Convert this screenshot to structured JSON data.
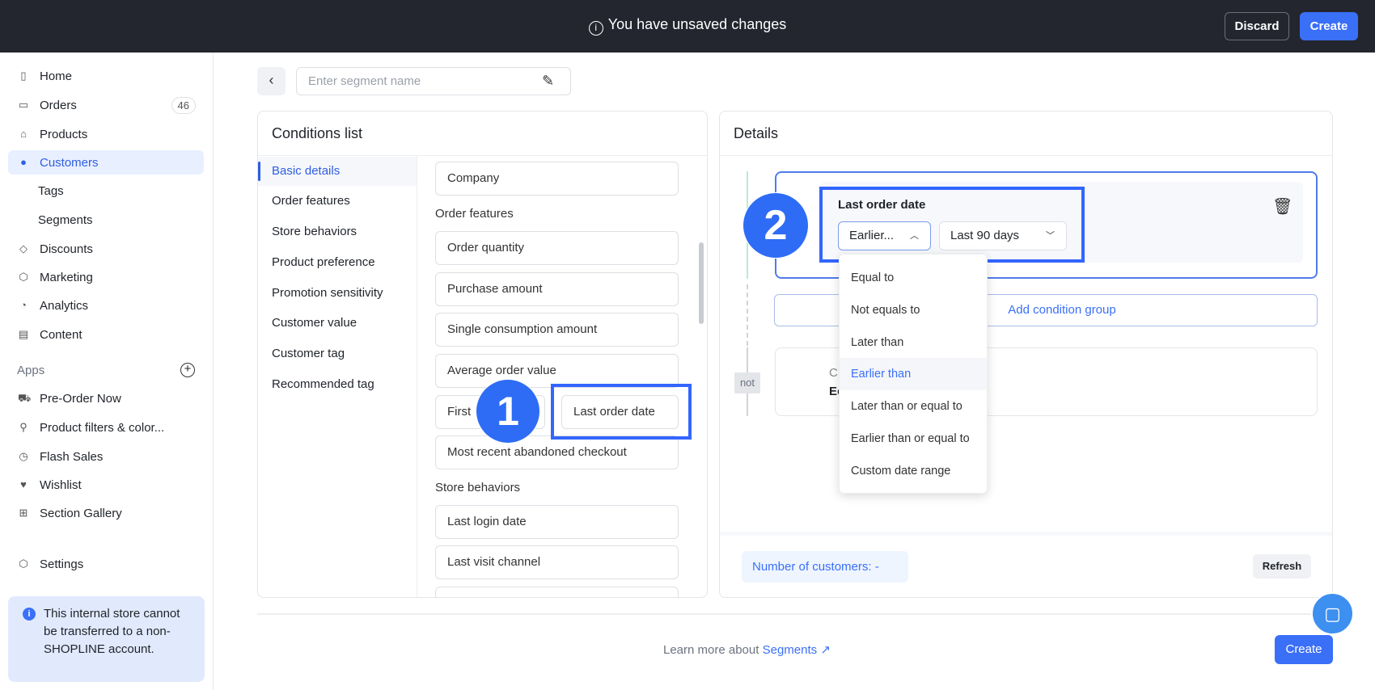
{
  "topbar": {
    "message": "You have unsaved changes",
    "discard": "Discard",
    "create": "Create"
  },
  "sidebar": {
    "items": [
      {
        "label": "Home",
        "icon": "home-icon"
      },
      {
        "label": "Orders",
        "icon": "orders-icon",
        "badge": "46"
      },
      {
        "label": "Products",
        "icon": "bag-icon"
      },
      {
        "label": "Customers",
        "icon": "person-icon",
        "active": true
      },
      {
        "label": "Tags"
      },
      {
        "label": "Segments"
      },
      {
        "label": "Discounts",
        "icon": "tag-icon"
      },
      {
        "label": "Marketing",
        "icon": "cube-icon"
      },
      {
        "label": "Analytics",
        "icon": "pie-icon"
      },
      {
        "label": "Content",
        "icon": "document-icon"
      }
    ],
    "apps_label": "Apps",
    "apps": [
      {
        "label": "Pre-Order Now"
      },
      {
        "label": "Product filters & color..."
      },
      {
        "label": "Flash Sales"
      },
      {
        "label": "Wishlist"
      },
      {
        "label": "Section Gallery"
      }
    ],
    "settings": "Settings",
    "notice": "This internal store cannot be transferred to a non-SHOPLINE account."
  },
  "segment": {
    "placeholder": "Enter segment name"
  },
  "conditions": {
    "title": "Conditions list",
    "nav": [
      "Basic details",
      "Order features",
      "Store behaviors",
      "Product preference",
      "Promotion sensitivity",
      "Customer value",
      "Customer tag",
      "Recommended tag"
    ],
    "company": "Company",
    "order_features_label": "Order features",
    "order_items": [
      "Order quantity",
      "Purchase amount",
      "Single consumption amount",
      "Average order value"
    ],
    "first_order": "First",
    "last_order": "Last order date",
    "abandoned": "Most recent abandoned checkout",
    "store_label": "Store behaviors",
    "store_items": [
      "Last login date",
      "Last visit channel"
    ]
  },
  "steps": {
    "one": "1",
    "two": "2"
  },
  "details": {
    "title": "Details",
    "condition_label": "Last order date",
    "operator": "Earlier...",
    "range": "Last 90 days",
    "add_group": "Add condition group",
    "not_label": "not",
    "hidden_line1": "C",
    "hidden_line2": "Ec",
    "dropdown": [
      "Equal to",
      "Not equals to",
      "Later than",
      "Earlier than",
      "Later than or equal to",
      "Earlier than or equal to",
      "Custom date range"
    ],
    "dropdown_selected": "Earlier than",
    "customers_label": "Number of customers:",
    "customers_value": "-",
    "refresh": "Refresh"
  },
  "footer": {
    "learn": "Learn more about",
    "link": "Segments",
    "create": "Create"
  },
  "colors": {
    "accent": "#3a6ff8",
    "topbar": "#23262f",
    "highlight": "#3366ff"
  }
}
